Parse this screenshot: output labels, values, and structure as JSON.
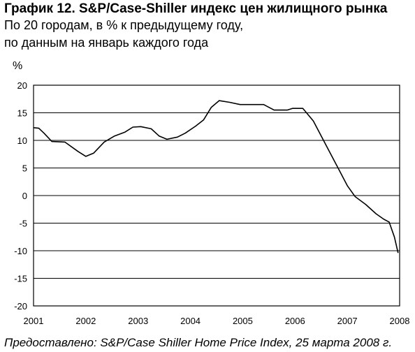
{
  "header": {
    "title": "График 12. S&P/Case-Shiller индекс цен жилищного рынка",
    "subtitle_line1": "По 20 городам, в % к предыдущему году,",
    "subtitle_line2": "по данным на январь каждого года"
  },
  "footer": {
    "credit": "Предоставлено: S&P/Case Shiller Home Price Index, 25 марта 2008 г."
  },
  "chart_data": {
    "type": "line",
    "title": "График 12. S&P/Case-Shiller индекс цен жилищного рынка",
    "ylabel": "%",
    "xlabel": "",
    "xlim": [
      2001,
      2008
    ],
    "ylim": [
      -20,
      20
    ],
    "yticks": [
      20,
      15,
      10,
      5,
      0,
      -5,
      -10,
      -15,
      -20
    ],
    "xticks": [
      2001,
      2002,
      2003,
      2004,
      2005,
      2006,
      2007,
      2008
    ],
    "grid": "horizontal",
    "series": [
      {
        "x": [
          2001.0,
          2001.1,
          2001.2,
          2001.35,
          2001.6,
          2001.85,
          2002.0,
          2002.15,
          2002.35,
          2002.55,
          2002.75,
          2002.9,
          2003.05,
          2003.25,
          2003.4,
          2003.55,
          2003.75,
          2003.9,
          2004.1,
          2004.25,
          2004.4,
          2004.55,
          2004.75,
          2004.95,
          2005.2,
          2005.4,
          2005.6,
          2005.85,
          2005.95,
          2006.15,
          2006.35,
          2006.6,
          2006.85,
          2007.0,
          2007.15,
          2007.35,
          2007.55,
          2007.7,
          2007.8,
          2007.9,
          2007.97
        ],
        "y": [
          12.3,
          12.2,
          11.3,
          9.8,
          9.7,
          8.0,
          7.1,
          7.7,
          9.7,
          10.8,
          11.5,
          12.4,
          12.5,
          12.1,
          10.8,
          10.2,
          10.6,
          11.3,
          12.6,
          13.7,
          16.0,
          17.2,
          16.9,
          16.5,
          16.5,
          16.5,
          15.5,
          15.5,
          15.8,
          15.8,
          13.5,
          9.0,
          4.5,
          1.8,
          -0.2,
          -1.6,
          -3.3,
          -4.3,
          -4.8,
          -7.5,
          -10.4
        ]
      }
    ]
  }
}
